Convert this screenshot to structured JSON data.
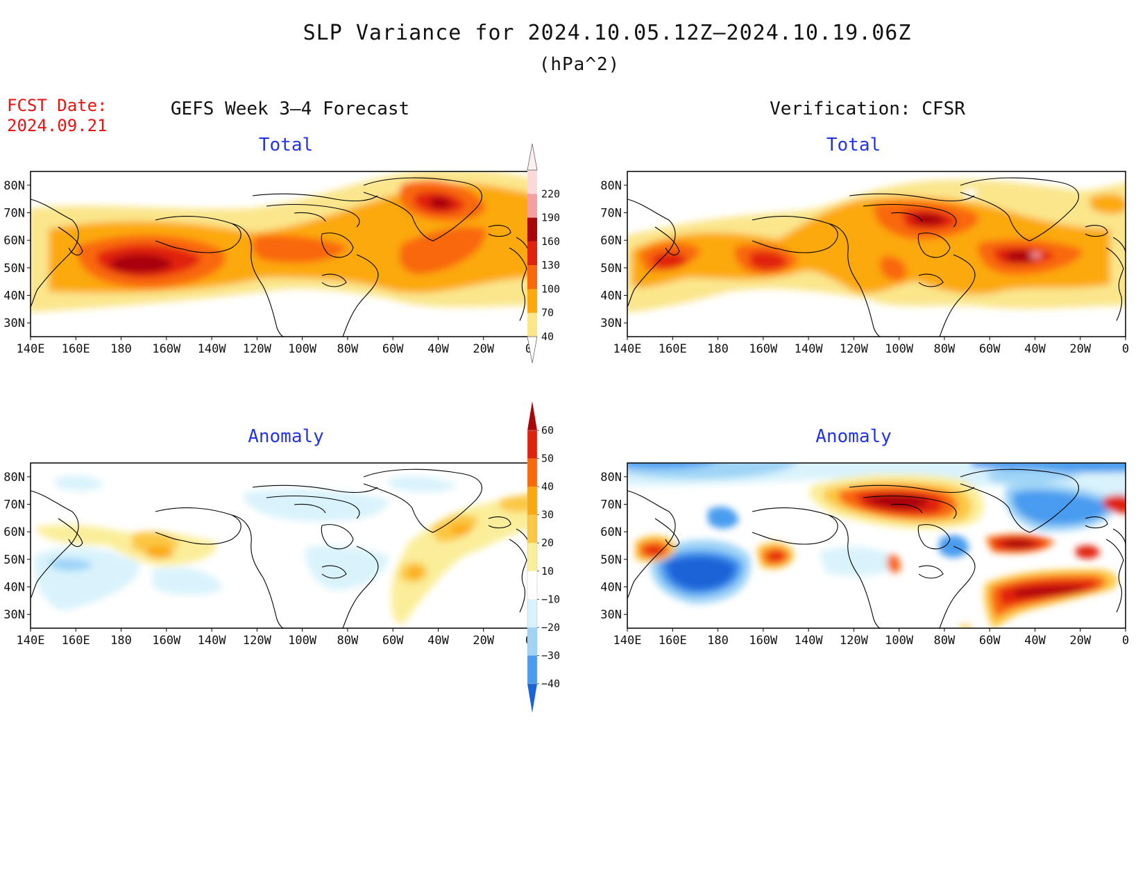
{
  "title": "SLP Variance for 2024.10.05.12Z–2024.10.19.06Z",
  "units": "(hPa^2)",
  "fcst_date_label": "FCST Date:",
  "fcst_date_value": "2024.09.21",
  "left_column_title": "GEFS Week 3–4 Forecast",
  "right_column_title": "Verification: CFSR",
  "panels": [
    {
      "title": "Total",
      "type": "total"
    },
    {
      "title": "Total",
      "type": "total"
    },
    {
      "title": "Anomaly",
      "type": "anomaly"
    },
    {
      "title": "Anomaly",
      "type": "anomaly"
    }
  ],
  "lon_labels": [
    "140E",
    "160E",
    "180",
    "160W",
    "140W",
    "120W",
    "100W",
    "80W",
    "60W",
    "40W",
    "20W",
    "0"
  ],
  "lat_labels": [
    "80N",
    "70N",
    "60N",
    "50N",
    "40N",
    "30N"
  ],
  "total_colorbar": {
    "levels": [
      "40",
      "70",
      "100",
      "130",
      "160",
      "190",
      "220"
    ],
    "colors": [
      "#fbe68c",
      "#fca90f",
      "#f9680a",
      "#e1220c",
      "#a9060a",
      "#f4a0a0",
      "#fbd9d9"
    ]
  },
  "anomaly_colorbar": {
    "levels": [
      "60",
      "50",
      "40",
      "30",
      "20",
      "10",
      "−10",
      "−20",
      "−30",
      "−40"
    ],
    "colors": [
      "#a9060a",
      "#e1220c",
      "#f9680a",
      "#fca90f",
      "#fcc745",
      "#fbee9a",
      "#ffffff",
      "#d9f3fc",
      "#9fd4f7",
      "#4a9cf0",
      "#1a64d8"
    ]
  }
}
